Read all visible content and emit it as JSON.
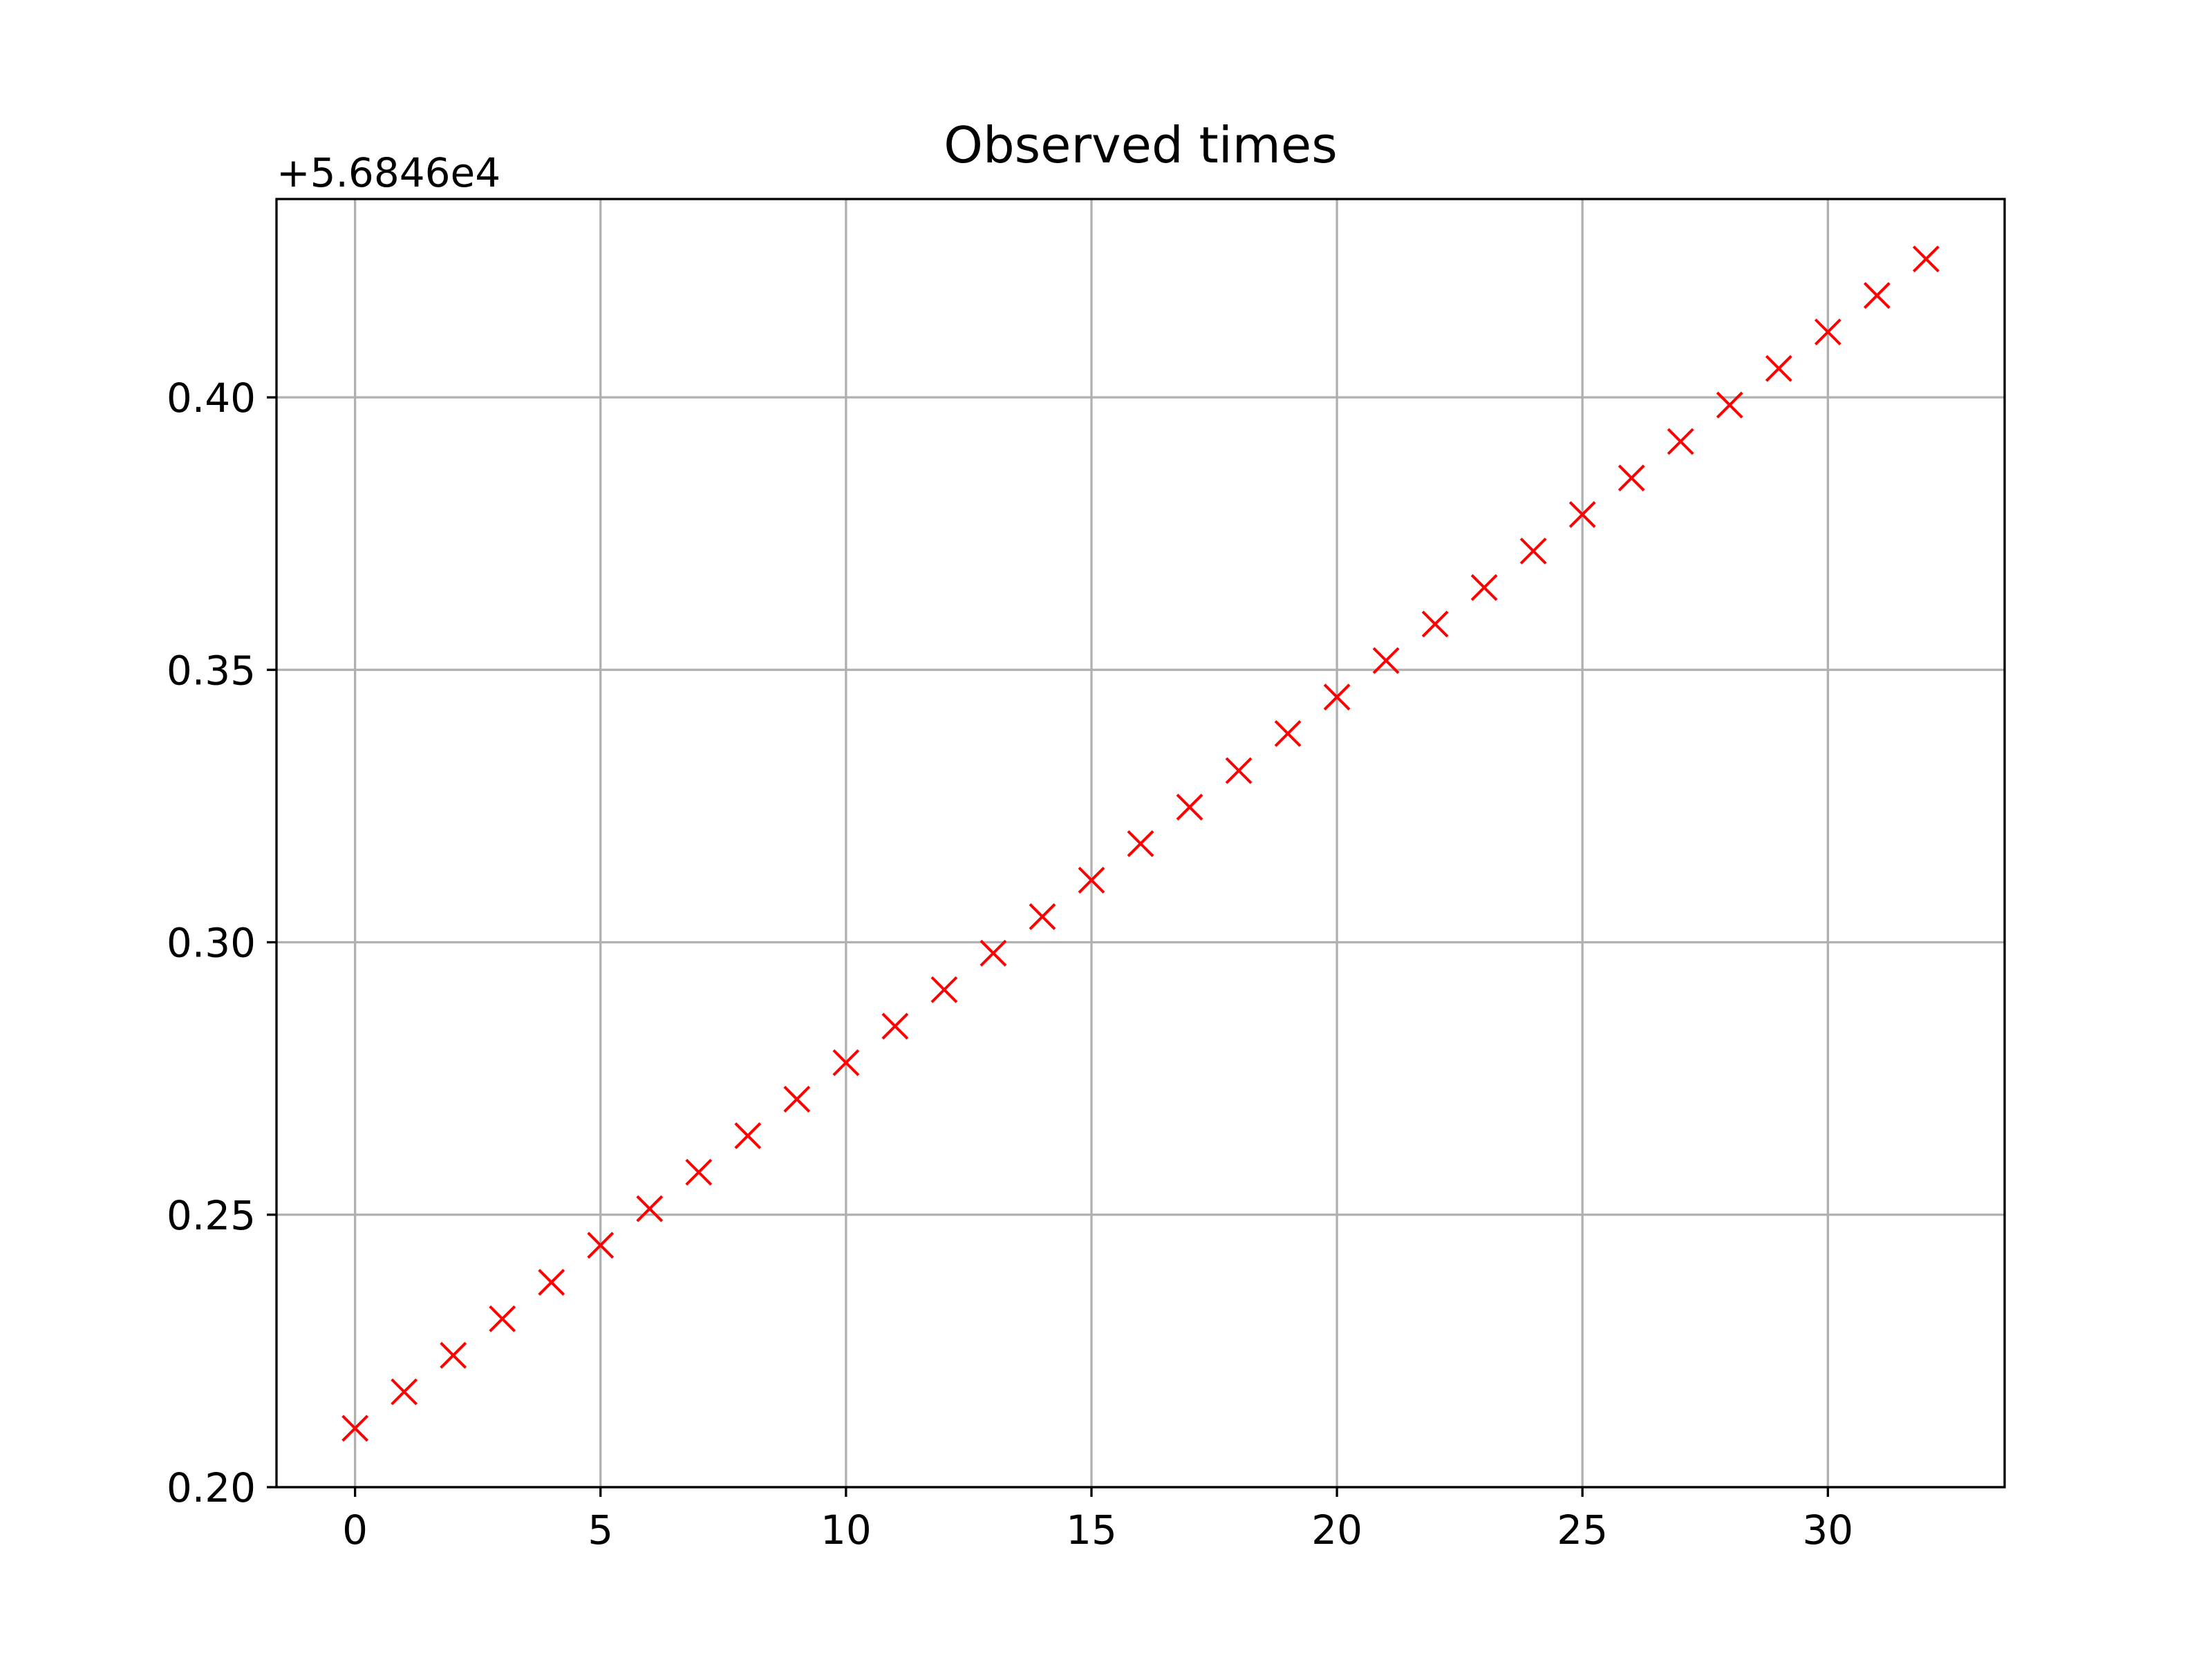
{
  "chart_data": {
    "type": "scatter",
    "title": "Observed times",
    "xlabel": "",
    "ylabel": "",
    "offset_label": "+5.6846e4",
    "xlim": [
      -1.6,
      33.6
    ],
    "ylim": [
      0.2,
      0.4364
    ],
    "xticks": [
      0,
      5,
      10,
      15,
      20,
      25,
      30
    ],
    "xtick_labels": [
      "0",
      "5",
      "10",
      "15",
      "20",
      "25",
      "30"
    ],
    "yticks": [
      0.2,
      0.25,
      0.3,
      0.35,
      0.4
    ],
    "ytick_labels": [
      "0.20",
      "0.25",
      "0.30",
      "0.35",
      "0.40"
    ],
    "grid": true,
    "marker": "x",
    "marker_color": "#ff0000",
    "series": [
      {
        "x": [
          0,
          1,
          2,
          3,
          4,
          5,
          6,
          7,
          8,
          9,
          10,
          11,
          12,
          13,
          14,
          15,
          16,
          17,
          18,
          19,
          20,
          21,
          22,
          23,
          24,
          25,
          26,
          27,
          28,
          29,
          30,
          31,
          32
        ],
        "y": [
          0.2108,
          0.2175,
          0.2242,
          0.2309,
          0.2376,
          0.2444,
          0.2511,
          0.2578,
          0.2645,
          0.2712,
          0.2779,
          0.2846,
          0.2913,
          0.298,
          0.3047,
          0.3114,
          0.3181,
          0.3248,
          0.3315,
          0.3383,
          0.345,
          0.3517,
          0.3584,
          0.3651,
          0.3718,
          0.3785,
          0.3852,
          0.3919,
          0.3986,
          0.4053,
          0.412,
          0.4187,
          0.4254
        ]
      }
    ]
  }
}
